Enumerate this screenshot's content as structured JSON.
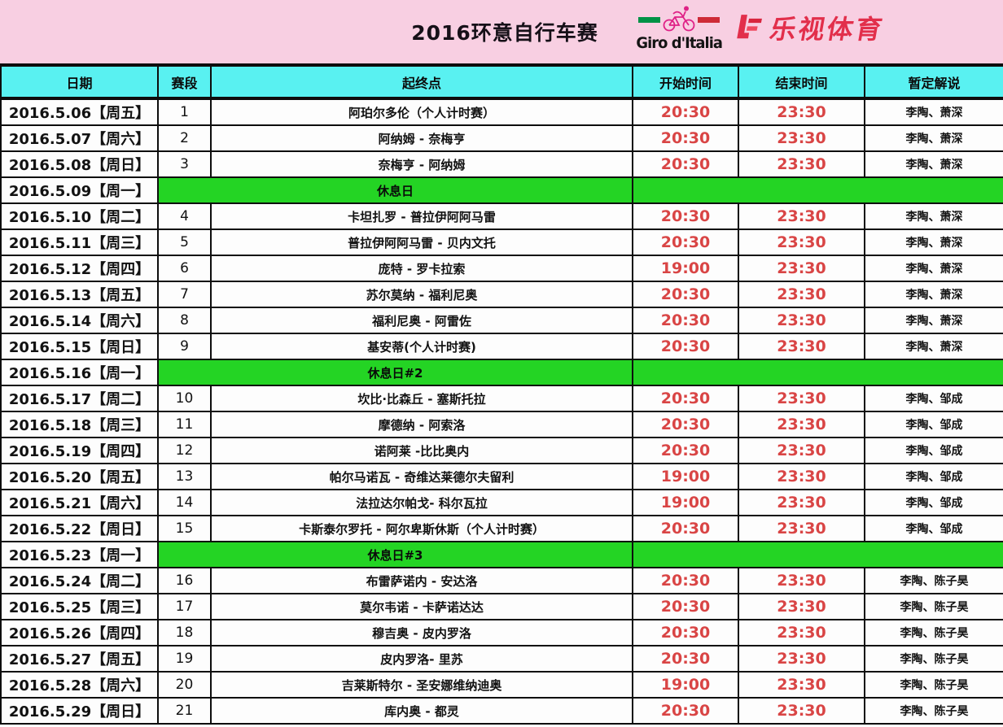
{
  "banner": {
    "title": "2016环意自行车赛",
    "giro": {
      "wordmark": "Giro d'Italia"
    },
    "letv": {
      "wordmark": "乐视体育"
    }
  },
  "colors": {
    "banner_bg": "#f8cfe2",
    "header_bg": "#59f1f1",
    "rest_bg": "#24d424",
    "time_red": "#d94545",
    "giro_green": "#009246",
    "giro_red": "#ce2b37",
    "giro_magenta": "#df2186",
    "letv_red": "#e22f4b",
    "border": "#0d0d0d"
  },
  "table": {
    "headers": [
      "日期",
      "赛段",
      "起终点",
      "开始时间",
      "结束时间",
      "暂定解说"
    ],
    "rows": [
      {
        "type": "stage",
        "date": "2016.5.06【周五】",
        "stage": "1",
        "route": "阿珀尔多伦（个人计时赛）",
        "start": "20:30",
        "end": "23:30",
        "commentators": "李陶、萧深"
      },
      {
        "type": "stage",
        "date": "2016.5.07【周六】",
        "stage": "2",
        "route": "阿纳姆 - 奈梅亨",
        "start": "20:30",
        "end": "23:30",
        "commentators": "李陶、萧深"
      },
      {
        "type": "stage",
        "date": "2016.5.08【周日】",
        "stage": "3",
        "route": "奈梅亨 - 阿纳姆",
        "start": "20:30",
        "end": "23:30",
        "commentators": "李陶、萧深"
      },
      {
        "type": "rest",
        "date": "2016.5.09【周一】",
        "label": "休息日"
      },
      {
        "type": "stage",
        "date": "2016.5.10【周二】",
        "stage": "4",
        "route": "卡坦扎罗 - 普拉伊阿阿马雷",
        "start": "20:30",
        "end": "23:30",
        "commentators": "李陶、萧深"
      },
      {
        "type": "stage",
        "date": "2016.5.11【周三】",
        "stage": "5",
        "route": "普拉伊阿阿马雷 - 贝内文托",
        "start": "20:30",
        "end": "23:30",
        "commentators": "李陶、萧深"
      },
      {
        "type": "stage",
        "date": "2016.5.12【周四】",
        "stage": "6",
        "route": "庞特 - 罗卡拉索",
        "start": "19:00",
        "end": "23:30",
        "commentators": "李陶、萧深"
      },
      {
        "type": "stage",
        "date": "2016.5.13【周五】",
        "stage": "7",
        "route": "苏尔莫纳 - 福利尼奥",
        "start": "20:30",
        "end": "23:30",
        "commentators": "李陶、萧深"
      },
      {
        "type": "stage",
        "date": "2016.5.14【周六】",
        "stage": "8",
        "route": "福利尼奥 - 阿雷佐",
        "start": "20:30",
        "end": "23:30",
        "commentators": "李陶、萧深"
      },
      {
        "type": "stage",
        "date": "2016.5.15【周日】",
        "stage": "9",
        "route": "基安蒂(个人计时赛)",
        "start": "20:30",
        "end": "23:30",
        "commentators": "李陶、萧深"
      },
      {
        "type": "rest",
        "date": "2016.5.16【周一】",
        "label": "休息日#2"
      },
      {
        "type": "stage",
        "date": "2016.5.17【周二】",
        "stage": "10",
        "route": "坎比·比森丘 - 塞斯托拉",
        "start": "20:30",
        "end": "23:30",
        "commentators": "李陶、邹成"
      },
      {
        "type": "stage",
        "date": "2016.5.18【周三】",
        "stage": "11",
        "route": "摩德纳 - 阿索洛",
        "start": "20:30",
        "end": "23:30",
        "commentators": "李陶、邹成"
      },
      {
        "type": "stage",
        "date": "2016.5.19【周四】",
        "stage": "12",
        "route": "诺阿莱 -比比奥内",
        "start": "20:30",
        "end": "23:30",
        "commentators": "李陶、邹成"
      },
      {
        "type": "stage",
        "date": "2016.5.20【周五】",
        "stage": "13",
        "route": "帕尔马诺瓦 - 奇维达莱德尔夫留利",
        "start": "19:00",
        "end": "23:30",
        "commentators": "李陶、邹成"
      },
      {
        "type": "stage",
        "date": "2016.5.21【周六】",
        "stage": "14",
        "route": "法拉达尔帕戈- 科尔瓦拉",
        "start": "19:00",
        "end": "23:30",
        "commentators": "李陶、邹成"
      },
      {
        "type": "stage",
        "date": "2016.5.22【周日】",
        "stage": "15",
        "route": "卡斯泰尔罗托 - 阿尔卑斯休斯（个人计时赛）",
        "start": "20:30",
        "end": "23:30",
        "commentators": "李陶、邹成"
      },
      {
        "type": "rest",
        "date": "2016.5.23【周一】",
        "label": "休息日#3"
      },
      {
        "type": "stage",
        "date": "2016.5.24【周二】",
        "stage": "16",
        "route": "布雷萨诺内 - 安达洛",
        "start": "20:30",
        "end": "23:30",
        "commentators": "李陶、陈子昊"
      },
      {
        "type": "stage",
        "date": "2016.5.25【周三】",
        "stage": "17",
        "route": "莫尔韦诺 - 卡萨诺达达",
        "start": "20:30",
        "end": "23:30",
        "commentators": "李陶、陈子昊"
      },
      {
        "type": "stage",
        "date": "2016.5.26【周四】",
        "stage": "18",
        "route": "穆吉奥 - 皮内罗洛",
        "start": "20:30",
        "end": "23:30",
        "commentators": "李陶、陈子昊"
      },
      {
        "type": "stage",
        "date": "2016.5.27【周五】",
        "stage": "19",
        "route": "皮内罗洛- 里苏",
        "start": "20:30",
        "end": "23:30",
        "commentators": "李陶、陈子昊"
      },
      {
        "type": "stage",
        "date": "2016.5.28【周六】",
        "stage": "20",
        "route": "吉莱斯特尔 - 圣安娜维纳迪奥",
        "start": "19:00",
        "end": "23:30",
        "commentators": "李陶、陈子昊"
      },
      {
        "type": "stage",
        "date": "2016.5.29【周日】",
        "stage": "21",
        "route": "库内奥 - 都灵",
        "start": "20:30",
        "end": "23:30",
        "commentators": "李陶、陈子昊"
      }
    ]
  }
}
